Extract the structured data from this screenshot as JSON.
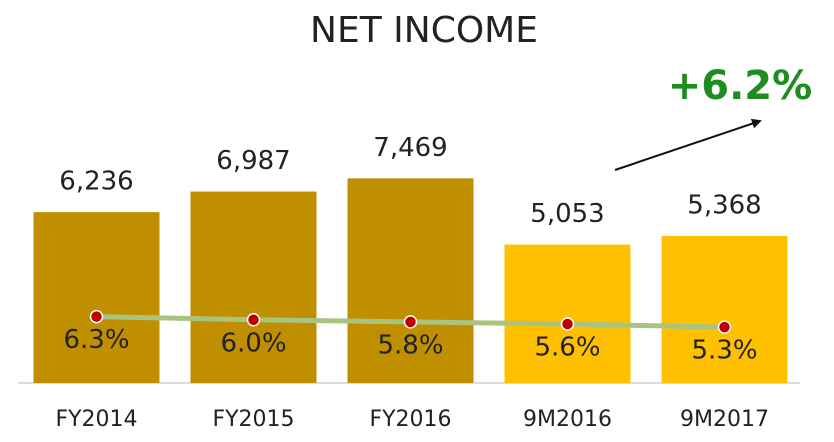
{
  "chart_data": {
    "type": "bar",
    "title": "NET INCOME",
    "categories": [
      "FY2014",
      "FY2015",
      "FY2016",
      "9M2016",
      "9M2017"
    ],
    "series": [
      {
        "type": "bar",
        "colors": [
          "#bf8f00",
          "#bf8f00",
          "#bf8f00",
          "#ffc000",
          "#ffc000"
        ],
        "values": [
          6236,
          6987,
          7469,
          5053,
          5368
        ],
        "value_labels": [
          "6,236",
          "6,987",
          "7,469",
          "5,053",
          "5,368"
        ]
      },
      {
        "type": "line",
        "axis": "y2",
        "color": "#a9c47f",
        "marker_color": "#c00000",
        "values": [
          6.3,
          6.0,
          5.8,
          5.6,
          5.3
        ],
        "value_labels": [
          "6.3%",
          "6.0%",
          "5.8%",
          "5.6%",
          "5.3%"
        ]
      }
    ],
    "ylim": [
      0,
      10000
    ],
    "y2lim": [
      0,
      26
    ],
    "annotation": "+6.2%",
    "annotation_color": "#1e8c1e"
  }
}
